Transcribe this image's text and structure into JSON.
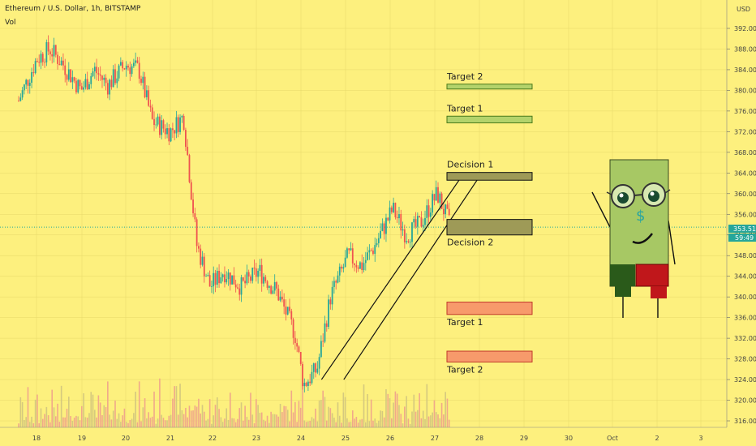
{
  "header": {
    "title": "Ethereum / U.S. Dollar, 1h, BITSTAMP",
    "vol_label": "Vol",
    "currency": "USD"
  },
  "last_price": {
    "price": "353.51",
    "sub": "59:49"
  },
  "colors": {
    "background": "#fdf07e",
    "up": "#26a69a",
    "down": "#ef5350",
    "price_line": "#26a69a",
    "target_up": "#b3d36b",
    "decision": "#9e9a57",
    "target_down": "#f79a6b",
    "target_down_border": "#c0392b"
  },
  "zones": [
    {
      "name": "Target 2",
      "price_low": 380.4,
      "price_high": 381.2,
      "fill": "#b3d36b",
      "stroke": "#4a7a1a",
      "label_pos": "above"
    },
    {
      "name": "Target 1",
      "price_low": 373.7,
      "price_high": 375.0,
      "fill": "#b3d36b",
      "stroke": "#4a7a1a",
      "label_pos": "above"
    },
    {
      "name": "Decision 1",
      "price_low": 362.6,
      "price_high": 364.1,
      "fill": "#9e9a57",
      "stroke": "#111",
      "label_pos": "above"
    },
    {
      "name": "Decision 2",
      "price_low": 352.0,
      "price_high": 355.0,
      "fill": "#9e9a57",
      "stroke": "#111",
      "label_pos": "below"
    },
    {
      "name": "Target 1",
      "price_low": 336.6,
      "price_high": 339.0,
      "fill": "#f79a6b",
      "stroke": "#c0392b",
      "label_pos": "below"
    },
    {
      "name": "Target 2",
      "price_low": 327.4,
      "price_high": 329.5,
      "fill": "#f79a6b",
      "stroke": "#c0392b",
      "label_pos": "below"
    }
  ],
  "chart_data": {
    "type": "candlestick",
    "title": "Ethereum / U.S. Dollar, 1h, BITSTAMP",
    "y_axis": {
      "label": "USD",
      "range": [
        315.0,
        395.0
      ],
      "ticks": [
        316,
        320,
        324,
        328,
        332,
        336,
        340,
        344,
        348,
        352,
        356,
        360,
        364,
        368,
        372,
        376,
        380,
        384,
        388,
        392
      ]
    },
    "x_axis": {
      "ticks": [
        "18",
        "19",
        "20",
        "21",
        "22",
        "23",
        "24",
        "25",
        "26",
        "27",
        "28",
        "29",
        "30",
        "Oct",
        "2",
        "3"
      ]
    },
    "last_price": 353.51,
    "price_path_approx": [
      {
        "x": "17.6",
        "y": 378
      },
      {
        "x": "18.0",
        "y": 386
      },
      {
        "x": "18.3",
        "y": 388
      },
      {
        "x": "18.6",
        "y": 385
      },
      {
        "x": "19.0",
        "y": 380
      },
      {
        "x": "19.3",
        "y": 384
      },
      {
        "x": "19.6",
        "y": 381
      },
      {
        "x": "20.0",
        "y": 385
      },
      {
        "x": "20.3",
        "y": 384
      },
      {
        "x": "20.6",
        "y": 374
      },
      {
        "x": "21.0",
        "y": 372
      },
      {
        "x": "21.3",
        "y": 375
      },
      {
        "x": "21.6",
        "y": 350
      },
      {
        "x": "21.9",
        "y": 342
      },
      {
        "x": "22.2",
        "y": 345
      },
      {
        "x": "22.6",
        "y": 342
      },
      {
        "x": "23.0",
        "y": 345
      },
      {
        "x": "23.4",
        "y": 341
      },
      {
        "x": "23.8",
        "y": 333
      },
      {
        "x": "24.0",
        "y": 323
      },
      {
        "x": "24.3",
        "y": 326
      },
      {
        "x": "24.6",
        "y": 340
      },
      {
        "x": "25.0",
        "y": 348
      },
      {
        "x": "25.3",
        "y": 346
      },
      {
        "x": "25.6",
        "y": 350
      },
      {
        "x": "26.0",
        "y": 357
      },
      {
        "x": "26.3",
        "y": 352
      },
      {
        "x": "26.6",
        "y": 354
      },
      {
        "x": "27.0",
        "y": 360
      },
      {
        "x": "27.3",
        "y": 353.5
      }
    ],
    "channel_lines": [
      {
        "from": {
          "x": "24.4",
          "y": 324
        },
        "to": {
          "x": "27.6",
          "y": 364
        }
      },
      {
        "from": {
          "x": "24.9",
          "y": 324
        },
        "to": {
          "x": "28.0",
          "y": 364
        }
      }
    ],
    "volume_unit": "unlabeled"
  }
}
